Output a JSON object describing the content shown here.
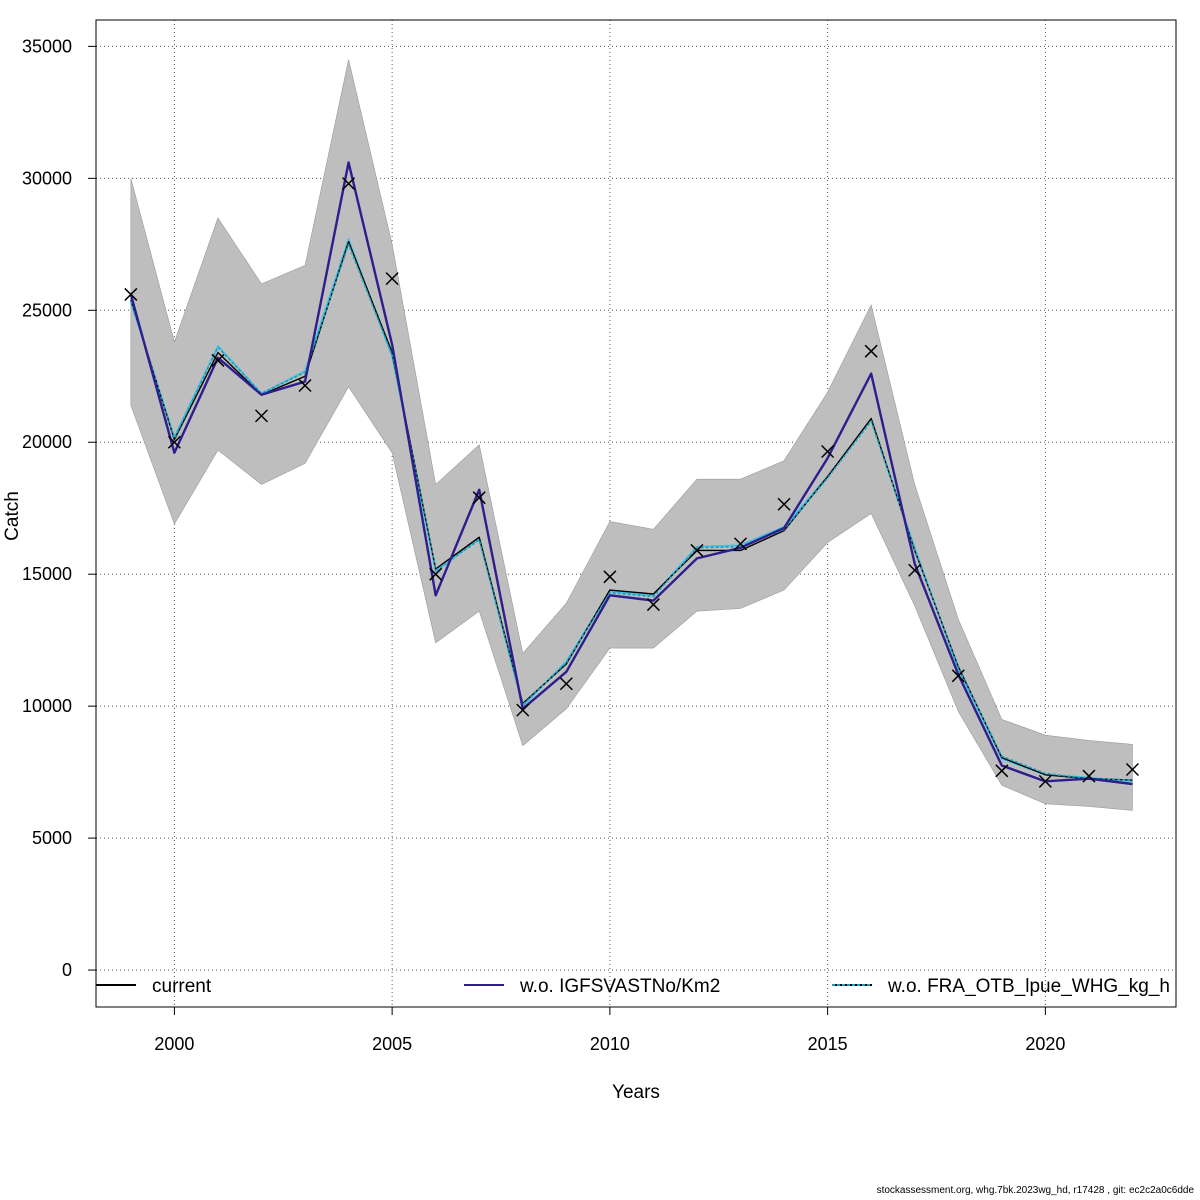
{
  "chart_data": {
    "type": "line",
    "title": "",
    "xlabel": "Years",
    "ylabel": "Catch",
    "xlim": [
      1998.2,
      2023.0
    ],
    "ylim": [
      -1400,
      36000
    ],
    "x_ticks": [
      2000,
      2005,
      2010,
      2015,
      2020
    ],
    "y_ticks": [
      0,
      5000,
      10000,
      15000,
      20000,
      25000,
      30000,
      35000
    ],
    "grid": true,
    "legend_position": "bottom",
    "x": [
      1999,
      2000,
      2001,
      2002,
      2003,
      2004,
      2005,
      2006,
      2007,
      2008,
      2009,
      2010,
      2011,
      2012,
      2013,
      2014,
      2015,
      2016,
      2017,
      2018,
      2019,
      2020,
      2021,
      2022
    ],
    "confidence_band": {
      "upper": [
        30000,
        23800,
        28500,
        26000,
        26700,
        34500,
        27500,
        18400,
        19900,
        12000,
        13900,
        17000,
        16700,
        18600,
        18600,
        19300,
        21900,
        25200,
        18400,
        13300,
        9500,
        8900,
        8700,
        8550
      ],
      "lower": [
        21400,
        16900,
        19700,
        18400,
        19200,
        22100,
        19600,
        12400,
        13600,
        8500,
        9900,
        12200,
        12200,
        13600,
        13700,
        14400,
        16200,
        17300,
        13800,
        9800,
        7000,
        6300,
        6200,
        6050
      ],
      "color": "#bebebe"
    },
    "observed_points": {
      "marker": "x",
      "values": [
        25600,
        20000,
        23100,
        21000,
        22150,
        29800,
        26200,
        15000,
        17900,
        9850,
        10850,
        14900,
        13850,
        15900,
        16150,
        17650,
        19650,
        23450,
        15150,
        11150,
        7550,
        7150,
        7350,
        7600
      ]
    },
    "series": [
      {
        "name": "current",
        "color": "#000000",
        "style": "solid",
        "values": [
          25400,
          20100,
          23400,
          21800,
          22500,
          27600,
          23400,
          15200,
          16400,
          10100,
          11600,
          14400,
          14250,
          15900,
          15900,
          16650,
          18700,
          20900,
          15900,
          11500,
          8050,
          7400,
          7250,
          7200
        ]
      },
      {
        "name": "w.o. IGFSVASTNo/Km2",
        "color": "#2e1d8c",
        "style": "solid",
        "values": [
          25600,
          19600,
          23200,
          21800,
          22300,
          30600,
          23700,
          14200,
          18200,
          9900,
          11300,
          14200,
          14000,
          15600,
          16000,
          16750,
          19400,
          22600,
          15400,
          11200,
          7750,
          7150,
          7250,
          7050
        ]
      },
      {
        "name": "w.o. FRA_OTB_lpue_WHG_kg_h",
        "color": "#1aa0b8",
        "style": "dotted",
        "values": [
          25350,
          20150,
          23600,
          21850,
          22650,
          27500,
          23300,
          15150,
          16300,
          10050,
          11650,
          14300,
          14150,
          16000,
          16050,
          16700,
          18650,
          20800,
          15950,
          11450,
          8100,
          7450,
          7250,
          7200
        ]
      }
    ],
    "extra_series": [
      {
        "color": "#40c0e8",
        "style": "solid",
        "values": [
          25300,
          20200,
          23650,
          21850,
          22700,
          27700,
          23250,
          15100,
          16350,
          10000,
          11700,
          14350,
          14200,
          16050,
          16100,
          16800,
          18700,
          20850,
          16000,
          11400,
          8000,
          7400,
          7300,
          7150
        ]
      }
    ]
  },
  "footer": "stockassessment.org, whg.7bk.2023wg_hd, r17428 , git: ec2c2a0c6dde"
}
